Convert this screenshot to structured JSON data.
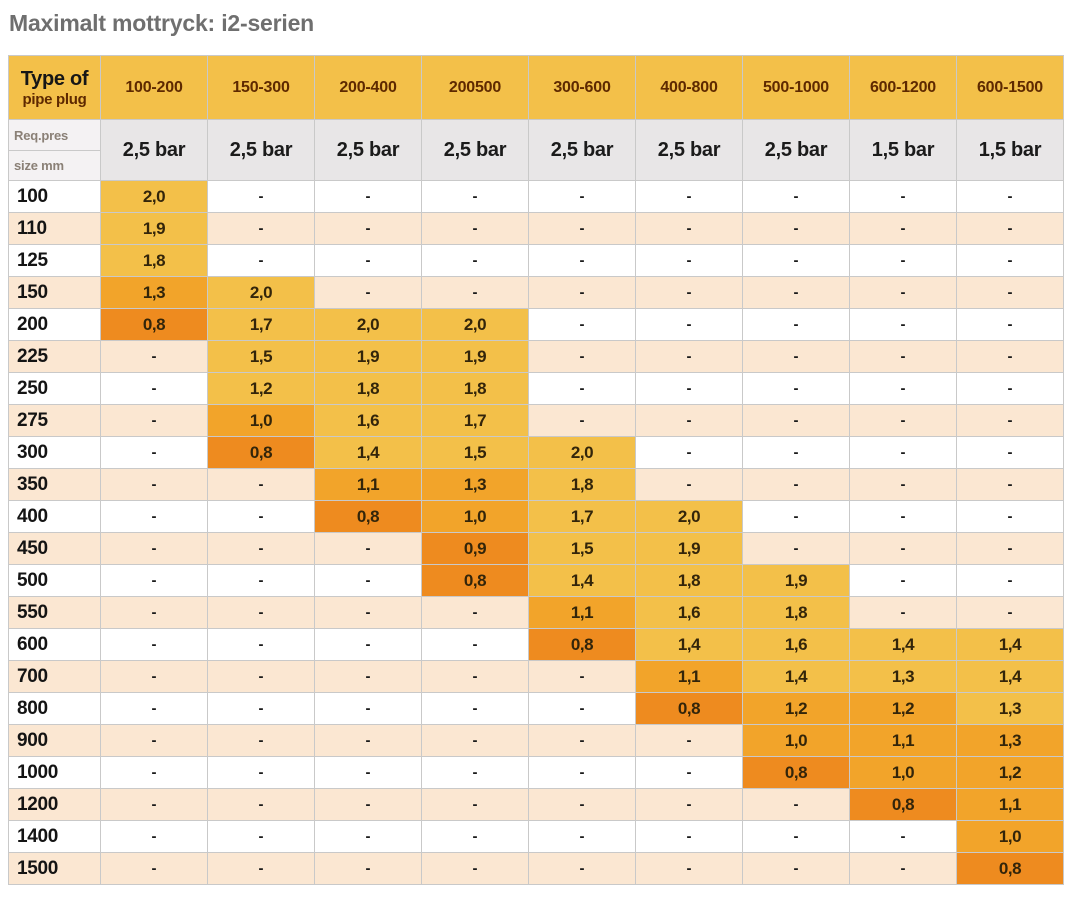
{
  "title": "Maximalt mottryck: i2-serien",
  "colors": {
    "yellow": "#F3C049",
    "amber": "#F2A42A",
    "orange": "#EE8B1F",
    "peach": "#FBE7D2",
    "white_row": "#FFFFFF",
    "pressure_bg": "#E8E6E7",
    "req_bg": "#F4F2F3",
    "title_text": "#6F6F6F",
    "header_text": "#5E2900",
    "value_text": "#33250A",
    "grid_line": "#C9C9C9"
  },
  "table": {
    "corner_line1": "Type of",
    "corner_line2": "pipe plug",
    "req_label": "Req.pres",
    "size_label": "size mm",
    "dash": "-",
    "columns": [
      "100-200",
      "150-300",
      "200-400",
      "200500",
      "300-600",
      "400-800",
      "500-1000",
      "600-1200",
      "600-1500"
    ],
    "pressures": [
      "2,5 bar",
      "2,5 bar",
      "2,5 bar",
      "2,5 bar",
      "2,5 bar",
      "2,5 bar",
      "2,5 bar",
      "1,5 bar",
      "1,5 bar"
    ],
    "rows": [
      {
        "size": "100",
        "cells": [
          {
            "v": "2,0",
            "c": "yellow"
          },
          null,
          null,
          null,
          null,
          null,
          null,
          null,
          null
        ]
      },
      {
        "size": "110",
        "cells": [
          {
            "v": "1,9",
            "c": "yellow"
          },
          null,
          null,
          null,
          null,
          null,
          null,
          null,
          null
        ]
      },
      {
        "size": "125",
        "cells": [
          {
            "v": "1,8",
            "c": "yellow"
          },
          null,
          null,
          null,
          null,
          null,
          null,
          null,
          null
        ]
      },
      {
        "size": "150",
        "cells": [
          {
            "v": "1,3",
            "c": "amber"
          },
          {
            "v": "2,0",
            "c": "yellow"
          },
          null,
          null,
          null,
          null,
          null,
          null,
          null
        ]
      },
      {
        "size": "200",
        "cells": [
          {
            "v": "0,8",
            "c": "orange"
          },
          {
            "v": "1,7",
            "c": "yellow"
          },
          {
            "v": "2,0",
            "c": "yellow"
          },
          {
            "v": "2,0",
            "c": "yellow"
          },
          null,
          null,
          null,
          null,
          null
        ]
      },
      {
        "size": "225",
        "cells": [
          null,
          {
            "v": "1,5",
            "c": "yellow"
          },
          {
            "v": "1,9",
            "c": "yellow"
          },
          {
            "v": "1,9",
            "c": "yellow"
          },
          null,
          null,
          null,
          null,
          null
        ]
      },
      {
        "size": "250",
        "cells": [
          null,
          {
            "v": "1,2",
            "c": "yellow"
          },
          {
            "v": "1,8",
            "c": "yellow"
          },
          {
            "v": "1,8",
            "c": "yellow"
          },
          null,
          null,
          null,
          null,
          null
        ]
      },
      {
        "size": "275",
        "cells": [
          null,
          {
            "v": "1,0",
            "c": "amber"
          },
          {
            "v": "1,6",
            "c": "yellow"
          },
          {
            "v": "1,7",
            "c": "yellow"
          },
          null,
          null,
          null,
          null,
          null
        ]
      },
      {
        "size": "300",
        "cells": [
          null,
          {
            "v": "0,8",
            "c": "orange"
          },
          {
            "v": "1,4",
            "c": "yellow"
          },
          {
            "v": "1,5",
            "c": "yellow"
          },
          {
            "v": "2,0",
            "c": "yellow"
          },
          null,
          null,
          null,
          null
        ]
      },
      {
        "size": "350",
        "cells": [
          null,
          null,
          {
            "v": "1,1",
            "c": "amber"
          },
          {
            "v": "1,3",
            "c": "amber"
          },
          {
            "v": "1,8",
            "c": "yellow"
          },
          null,
          null,
          null,
          null
        ]
      },
      {
        "size": "400",
        "cells": [
          null,
          null,
          {
            "v": "0,8",
            "c": "orange"
          },
          {
            "v": "1,0",
            "c": "amber"
          },
          {
            "v": "1,7",
            "c": "yellow"
          },
          {
            "v": "2,0",
            "c": "yellow"
          },
          null,
          null,
          null
        ]
      },
      {
        "size": "450",
        "cells": [
          null,
          null,
          null,
          {
            "v": "0,9",
            "c": "orange"
          },
          {
            "v": "1,5",
            "c": "yellow"
          },
          {
            "v": "1,9",
            "c": "yellow"
          },
          null,
          null,
          null
        ]
      },
      {
        "size": "500",
        "cells": [
          null,
          null,
          null,
          {
            "v": "0,8",
            "c": "orange"
          },
          {
            "v": "1,4",
            "c": "yellow"
          },
          {
            "v": "1,8",
            "c": "yellow"
          },
          {
            "v": "1,9",
            "c": "yellow"
          },
          null,
          null
        ]
      },
      {
        "size": "550",
        "cells": [
          null,
          null,
          null,
          null,
          {
            "v": "1,1",
            "c": "amber"
          },
          {
            "v": "1,6",
            "c": "yellow"
          },
          {
            "v": "1,8",
            "c": "yellow"
          },
          null,
          null
        ]
      },
      {
        "size": "600",
        "cells": [
          null,
          null,
          null,
          null,
          {
            "v": "0,8",
            "c": "orange"
          },
          {
            "v": "1,4",
            "c": "yellow"
          },
          {
            "v": "1,6",
            "c": "yellow"
          },
          {
            "v": "1,4",
            "c": "yellow"
          },
          {
            "v": "1,4",
            "c": "yellow"
          }
        ]
      },
      {
        "size": "700",
        "cells": [
          null,
          null,
          null,
          null,
          null,
          {
            "v": "1,1",
            "c": "amber"
          },
          {
            "v": "1,4",
            "c": "yellow"
          },
          {
            "v": "1,3",
            "c": "yellow"
          },
          {
            "v": "1,4",
            "c": "yellow"
          }
        ]
      },
      {
        "size": "800",
        "cells": [
          null,
          null,
          null,
          null,
          null,
          {
            "v": "0,8",
            "c": "orange"
          },
          {
            "v": "1,2",
            "c": "amber"
          },
          {
            "v": "1,2",
            "c": "amber"
          },
          {
            "v": "1,3",
            "c": "yellow"
          }
        ]
      },
      {
        "size": "900",
        "cells": [
          null,
          null,
          null,
          null,
          null,
          null,
          {
            "v": "1,0",
            "c": "amber"
          },
          {
            "v": "1,1",
            "c": "amber"
          },
          {
            "v": "1,3",
            "c": "amber"
          }
        ]
      },
      {
        "size": "1000",
        "cells": [
          null,
          null,
          null,
          null,
          null,
          null,
          {
            "v": "0,8",
            "c": "orange"
          },
          {
            "v": "1,0",
            "c": "amber"
          },
          {
            "v": "1,2",
            "c": "amber"
          }
        ]
      },
      {
        "size": "1200",
        "cells": [
          null,
          null,
          null,
          null,
          null,
          null,
          null,
          {
            "v": "0,8",
            "c": "orange"
          },
          {
            "v": "1,1",
            "c": "amber"
          }
        ]
      },
      {
        "size": "1400",
        "cells": [
          null,
          null,
          null,
          null,
          null,
          null,
          null,
          null,
          {
            "v": "1,0",
            "c": "amber"
          }
        ]
      },
      {
        "size": "1500",
        "cells": [
          null,
          null,
          null,
          null,
          null,
          null,
          null,
          null,
          {
            "v": "0,8",
            "c": "orange"
          }
        ]
      }
    ]
  }
}
